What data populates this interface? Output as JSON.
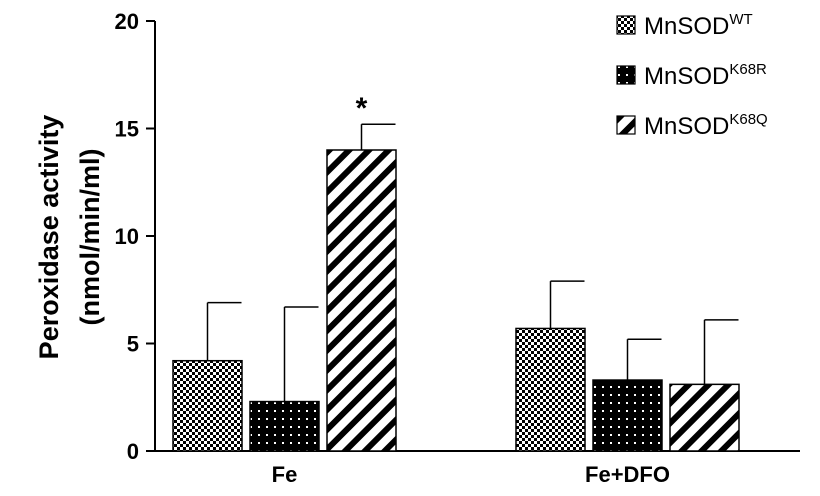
{
  "chart_data": {
    "type": "bar",
    "title": "",
    "ylabel_line1": "Peroxidase activity",
    "ylabel_line2": "(nmol/min/ml)",
    "xlabel": "",
    "ylim": [
      0,
      20
    ],
    "yticks": [
      "0",
      "5",
      "10",
      "15",
      "20"
    ],
    "categories": [
      "Fe",
      "Fe+DFO"
    ],
    "series": [
      {
        "name_base": "MnSOD",
        "name_sup": "WT",
        "pattern": "checker",
        "values": [
          4.2,
          5.7
        ],
        "errors": [
          2.7,
          2.2
        ]
      },
      {
        "name_base": "MnSOD",
        "name_sup": "K68R",
        "pattern": "dots",
        "values": [
          2.3,
          3.3
        ],
        "errors": [
          4.4,
          1.9
        ]
      },
      {
        "name_base": "MnSOD",
        "name_sup": "K68Q",
        "pattern": "diagonal",
        "values": [
          14.0,
          3.1
        ],
        "errors": [
          1.2,
          3.0
        ]
      }
    ],
    "annotations": [
      {
        "text": "*",
        "category": 0,
        "series": 2
      }
    ],
    "legend_position": "top-right",
    "grid": false
  }
}
